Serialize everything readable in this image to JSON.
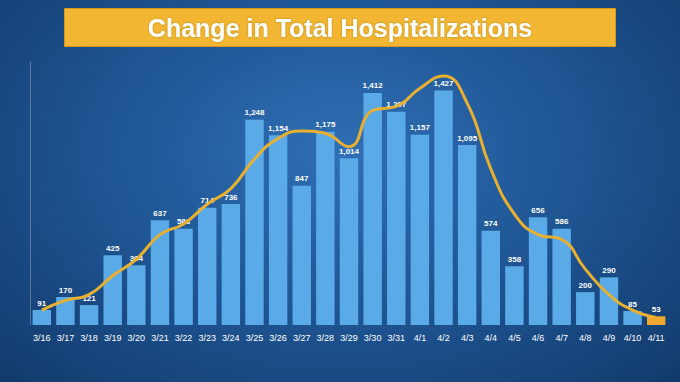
{
  "chart_data": {
    "type": "bar",
    "title": "Change in Total Hospitalizations",
    "categories": [
      "3/16",
      "3/17",
      "3/18",
      "3/19",
      "3/20",
      "3/21",
      "3/22",
      "3/23",
      "3/24",
      "3/25",
      "3/26",
      "3/27",
      "3/28",
      "3/29",
      "3/30",
      "3/31",
      "4/1",
      "4/2",
      "4/3",
      "4/4",
      "4/5",
      "4/6",
      "4/7",
      "4/8",
      "4/9",
      "4/10",
      "4/11"
    ],
    "series": [
      {
        "type": "bar",
        "values": [
          91,
          170,
          121,
          425,
          364,
          637,
          586,
          714,
          736,
          1248,
          1154,
          847,
          1175,
          1014,
          1412,
          1297,
          1157,
          1427,
          1095,
          574,
          358,
          656,
          586,
          200,
          290,
          85,
          53
        ],
        "value_labels": [
          "91",
          "170",
          "121",
          "425",
          "364",
          "637",
          "586",
          "714",
          "736",
          "1,248",
          "1,154",
          "847",
          "1,175",
          "1,014",
          "1,412",
          "1,297",
          "1,157",
          "1,427",
          "1,095",
          "574",
          "358",
          "656",
          "586",
          "200",
          "290",
          "85",
          "53"
        ],
        "colors": [
          "#5aaae8",
          "#5aaae8",
          "#5aaae8",
          "#5aaae8",
          "#5aaae8",
          "#5aaae8",
          "#5aaae8",
          "#5aaae8",
          "#5aaae8",
          "#5aaae8",
          "#5aaae8",
          "#5aaae8",
          "#5aaae8",
          "#5aaae8",
          "#5aaae8",
          "#5aaae8",
          "#5aaae8",
          "#5aaae8",
          "#5aaae8",
          "#5aaae8",
          "#5aaae8",
          "#5aaae8",
          "#5aaae8",
          "#5aaae8",
          "#5aaae8",
          "#5aaae8",
          "#f0a830"
        ],
        "data_labels": true
      },
      {
        "type": "line",
        "color": "#e8b030",
        "values": [
          90,
          150,
          185,
          300,
          400,
          550,
          615,
          735,
          830,
          1010,
          1135,
          1180,
          1165,
          1085,
          1305,
          1330,
          1440,
          1515,
          1350,
          950,
          675,
          550,
          520,
          340,
          185,
          90,
          45
        ]
      }
    ],
    "ylim": [
      0,
      1600
    ],
    "yticks": [],
    "grid": false,
    "tick_labels": "x"
  }
}
